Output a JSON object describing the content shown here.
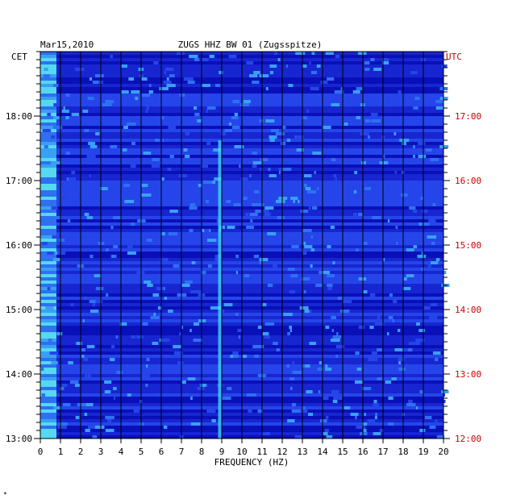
{
  "chart_data": {
    "type": "heatmap",
    "date": "Mar15,2010",
    "title": "ZUGS HHZ BW 01 (Zugsspitze)",
    "left_timezone": "CET",
    "right_timezone": "UTC",
    "xlabel": "FREQUENCY (HZ)",
    "xlim": [
      0,
      20
    ],
    "x_ticks": [
      "0",
      "1",
      "2",
      "3",
      "4",
      "5",
      "6",
      "7",
      "8",
      "9",
      "10",
      "11",
      "12",
      "13",
      "14",
      "15",
      "16",
      "17",
      "18",
      "19",
      "20"
    ],
    "left_ticks": [
      "18:00",
      "17:00",
      "16:00",
      "15:00",
      "14:00",
      "13:00"
    ],
    "right_ticks": [
      "17:00",
      "16:00",
      "15:00",
      "14:00",
      "13:00",
      "12:00"
    ],
    "grid": true,
    "colors": {
      "background": "#1f2fe0",
      "grid": "#000000",
      "utc": "#cc0000",
      "text": "#000000"
    },
    "features": [
      {
        "description_key": "persistent-line",
        "frequency_hz": 8.9
      },
      {
        "description_key": "low-frequency-band",
        "frequency_hz": 0.4
      }
    ]
  },
  "footer_mark": "*"
}
